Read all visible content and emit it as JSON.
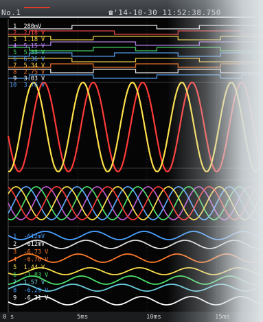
{
  "header": {
    "screen_id": "No.1",
    "timestamp": "☎'14-10-30 11:52:38.750"
  },
  "digital_channels": [
    {
      "label": "1",
      "value": "280mV",
      "color": "#ffffff"
    },
    {
      "label": "2",
      "value": "2.18 V",
      "color": "#ff4a4a"
    },
    {
      "label": "3",
      "value": "1.18 V",
      "color": "#ffe14a"
    },
    {
      "label": "4",
      "value": "5.15 V",
      "color": "#c08cff"
    },
    {
      "label": "5",
      "value": "5.35 V",
      "color": "#4ae06a"
    },
    {
      "label": "6",
      "value": "6.36 V",
      "color": "#5aaaff"
    },
    {
      "label": "7",
      "value": "5.34 V",
      "color": "#ffd84a"
    },
    {
      "label": "8",
      "value": "2.75 V",
      "color": "#ff7a2a"
    },
    {
      "label": "9",
      "value": "3.03 V",
      "color": "#ffffff"
    },
    {
      "label": "10",
      "value": "3.76 V",
      "color": "#5aaaff"
    }
  ],
  "analog_channels": [
    {
      "label": "1",
      "value": "-612mV",
      "color": "#4aa0ff"
    },
    {
      "label": "2",
      "value": "-612mV",
      "color": "#ffffff"
    },
    {
      "label": "3",
      "value": "-6.73 V",
      "color": "#ff7a2a"
    },
    {
      "label": "4",
      "value": "-6.76 V",
      "color": "#ff7a2a"
    },
    {
      "label": "5",
      "value": "1.44 V",
      "color": "#ffe14a"
    },
    {
      "label": "6",
      "value": "-1.83 V",
      "color": "#4ae06a"
    },
    {
      "label": "7",
      "value": "1.57 V",
      "color": "#6ad0e0"
    },
    {
      "label": "8",
      "value": "-6.29 V",
      "color": "#4aa0ff"
    },
    {
      "label": "9",
      "value": "-6.31 V",
      "color": "#ffffff"
    }
  ],
  "time_axis": {
    "ticks": [
      "0 s",
      "5ms",
      "10ms",
      "15ms"
    ]
  },
  "colors": {
    "background": "#050505",
    "grid": "#3a3a3a",
    "header": "#3c4044"
  }
}
